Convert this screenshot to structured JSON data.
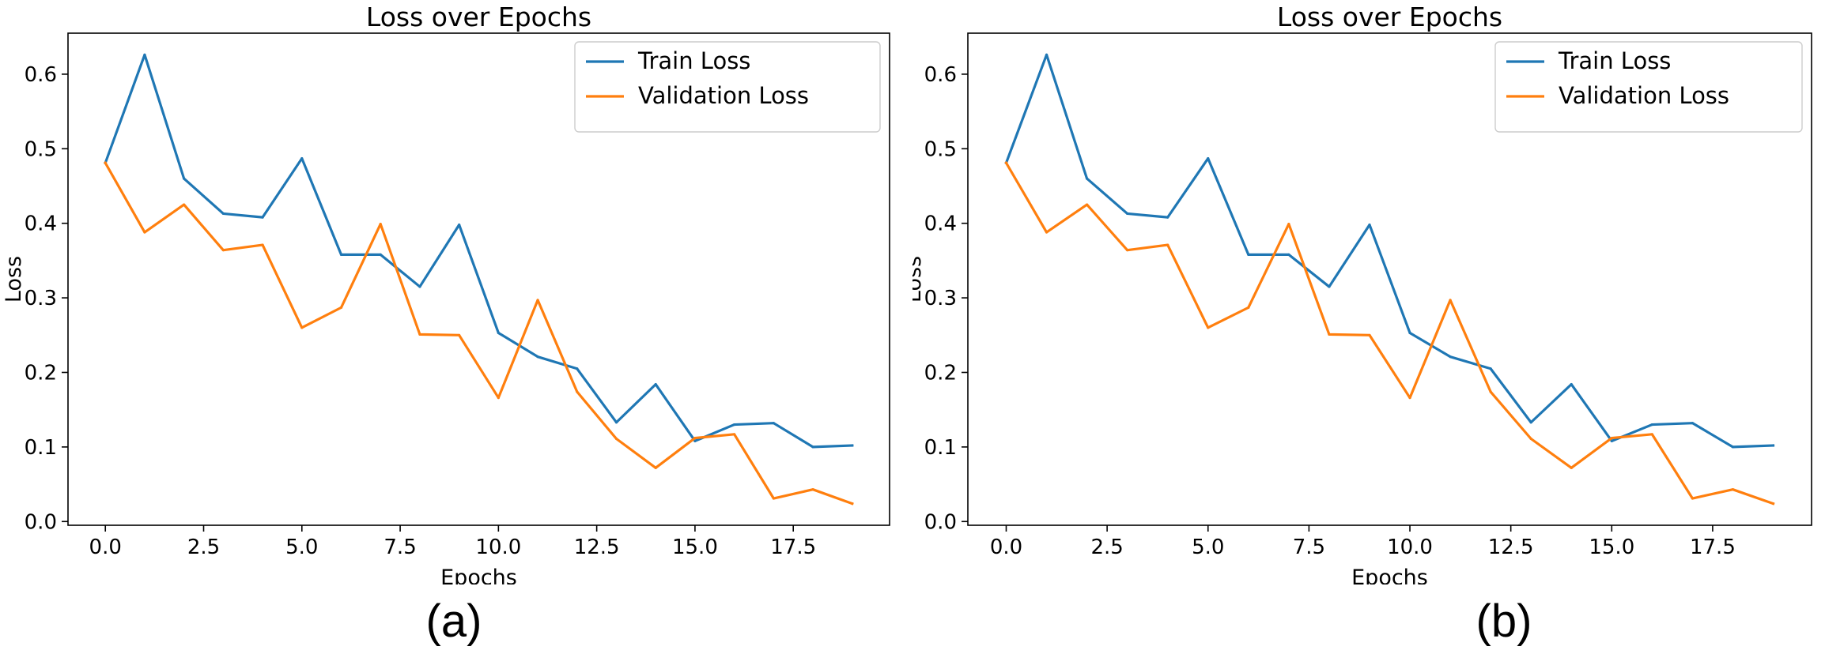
{
  "chart_data": [
    {
      "type": "line",
      "panel": "(a)",
      "title": "Loss over Epochs",
      "xlabel": "Epochs",
      "ylabel": "Loss",
      "xlim": [
        -0.95,
        19.95
      ],
      "ylim": [
        -0.005,
        0.655
      ],
      "xticks": [
        0,
        2.5,
        5,
        7.5,
        10,
        12.5,
        15,
        17.5
      ],
      "xtick_labels": [
        "0.0",
        "2.5",
        "5.0",
        "7.5",
        "10.0",
        "12.5",
        "15.0",
        "17.5"
      ],
      "yticks": [
        0,
        0.1,
        0.2,
        0.3,
        0.4,
        0.5,
        0.6
      ],
      "ytick_labels": [
        "0.0",
        "0.1",
        "0.2",
        "0.3",
        "0.4",
        "0.5",
        "0.6"
      ],
      "legend_position": "top-right",
      "x": [
        0,
        1,
        2,
        3,
        4,
        5,
        6,
        7,
        8,
        9,
        10,
        11,
        12,
        13,
        14,
        15,
        16,
        17,
        18,
        19
      ],
      "series": [
        {
          "name": "Train Loss",
          "color": "#1f77b4",
          "values": [
            0.481,
            0.626,
            0.46,
            0.413,
            0.408,
            0.487,
            0.358,
            0.358,
            0.315,
            0.398,
            0.253,
            0.221,
            0.205,
            0.133,
            0.184,
            0.108,
            0.13,
            0.132,
            0.1,
            0.102
          ]
        },
        {
          "name": "Validation Loss",
          "color": "#ff7f0e",
          "values": [
            0.481,
            0.388,
            0.425,
            0.364,
            0.371,
            0.26,
            0.287,
            0.399,
            0.251,
            0.25,
            0.166,
            0.297,
            0.174,
            0.111,
            0.072,
            0.112,
            0.117,
            0.031,
            0.043,
            0.024
          ]
        }
      ]
    },
    {
      "type": "line",
      "panel": "(b)",
      "title": "Loss over Epochs",
      "xlabel": "Epochs",
      "ylabel": "Loss",
      "xlim": [
        -0.95,
        19.95
      ],
      "ylim": [
        -0.005,
        0.655
      ],
      "xticks": [
        0,
        2.5,
        5,
        7.5,
        10,
        12.5,
        15,
        17.5
      ],
      "xtick_labels": [
        "0.0",
        "2.5",
        "5.0",
        "7.5",
        "10.0",
        "12.5",
        "15.0",
        "17.5"
      ],
      "yticks": [
        0,
        0.1,
        0.2,
        0.3,
        0.4,
        0.5,
        0.6
      ],
      "ytick_labels": [
        "0.0",
        "0.1",
        "0.2",
        "0.3",
        "0.4",
        "0.5",
        "0.6"
      ],
      "legend_position": "top-right",
      "x": [
        0,
        1,
        2,
        3,
        4,
        5,
        6,
        7,
        8,
        9,
        10,
        11,
        12,
        13,
        14,
        15,
        16,
        17,
        18,
        19
      ],
      "series": [
        {
          "name": "Train Loss",
          "color": "#1f77b4",
          "values": [
            0.481,
            0.626,
            0.46,
            0.413,
            0.408,
            0.487,
            0.358,
            0.358,
            0.315,
            0.398,
            0.253,
            0.221,
            0.205,
            0.133,
            0.184,
            0.108,
            0.13,
            0.132,
            0.1,
            0.102
          ]
        },
        {
          "name": "Validation Loss",
          "color": "#ff7f0e",
          "values": [
            0.481,
            0.388,
            0.425,
            0.364,
            0.371,
            0.26,
            0.287,
            0.399,
            0.251,
            0.25,
            0.166,
            0.297,
            0.174,
            0.111,
            0.072,
            0.112,
            0.117,
            0.031,
            0.043,
            0.024
          ]
        }
      ]
    }
  ]
}
